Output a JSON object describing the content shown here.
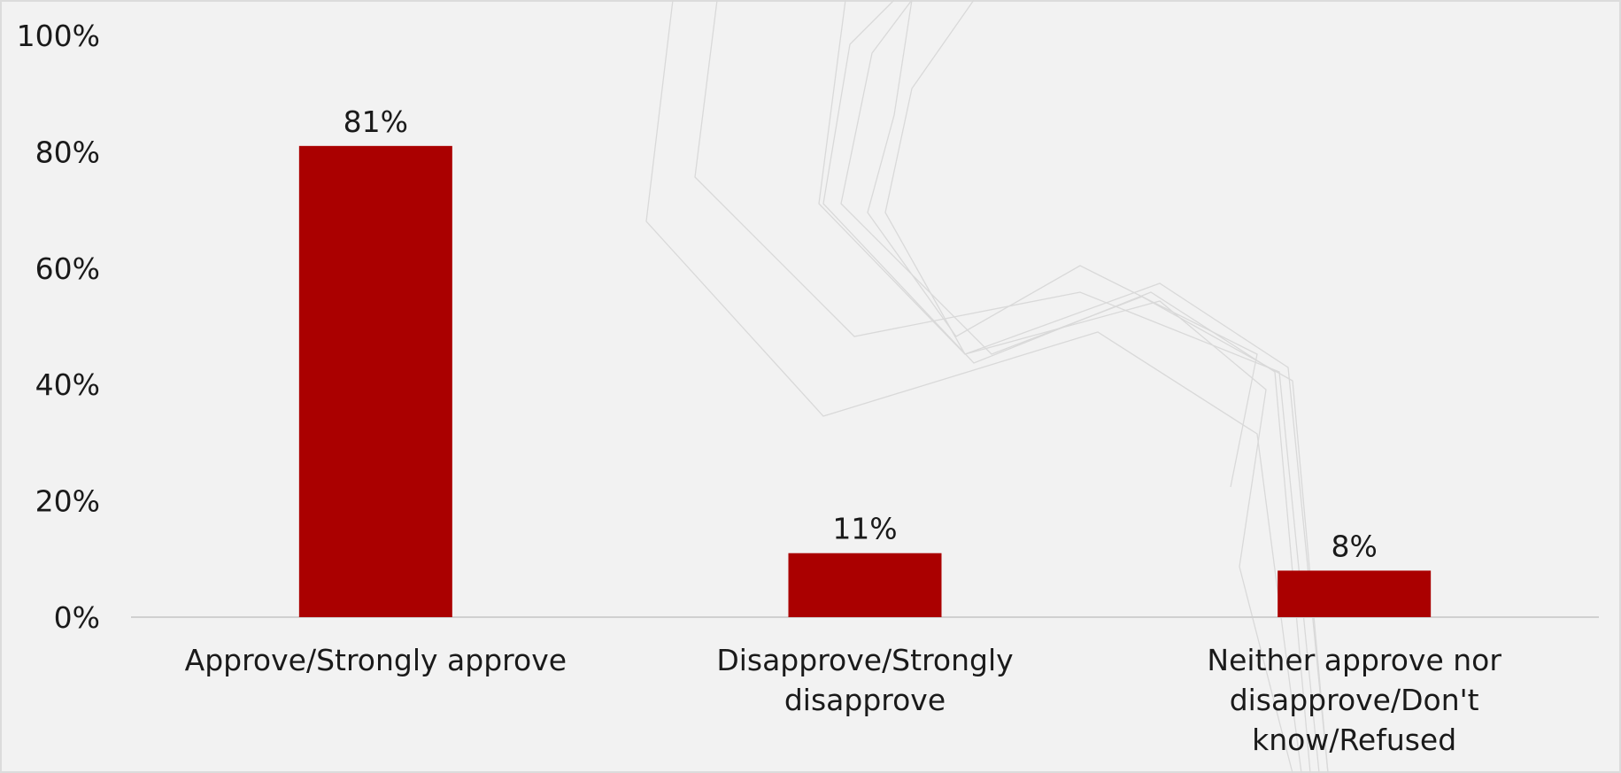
{
  "chart_data": {
    "type": "bar",
    "categories": [
      [
        "Approve/Strongly approve"
      ],
      [
        "Disapprove/Strongly",
        "disapprove"
      ],
      [
        "Neither approve nor",
        "disapprove/Don't",
        "know/Refused"
      ]
    ],
    "values": [
      81,
      11,
      8
    ],
    "data_labels": [
      "81%",
      "11%",
      "8%"
    ],
    "title": "",
    "xlabel": "",
    "ylabel": "",
    "ylim": [
      0,
      100
    ],
    "yticks": [
      0,
      20,
      40,
      60,
      80,
      100
    ],
    "ytick_labels": [
      "0%",
      "20%",
      "40%",
      "60%",
      "80%",
      "100%"
    ],
    "grid": false,
    "legend": "none"
  },
  "colors": {
    "bar": "#aa0000",
    "axis": "#d0d0d0",
    "text": "#1a1a1a",
    "background": "#f2f2f2"
  }
}
